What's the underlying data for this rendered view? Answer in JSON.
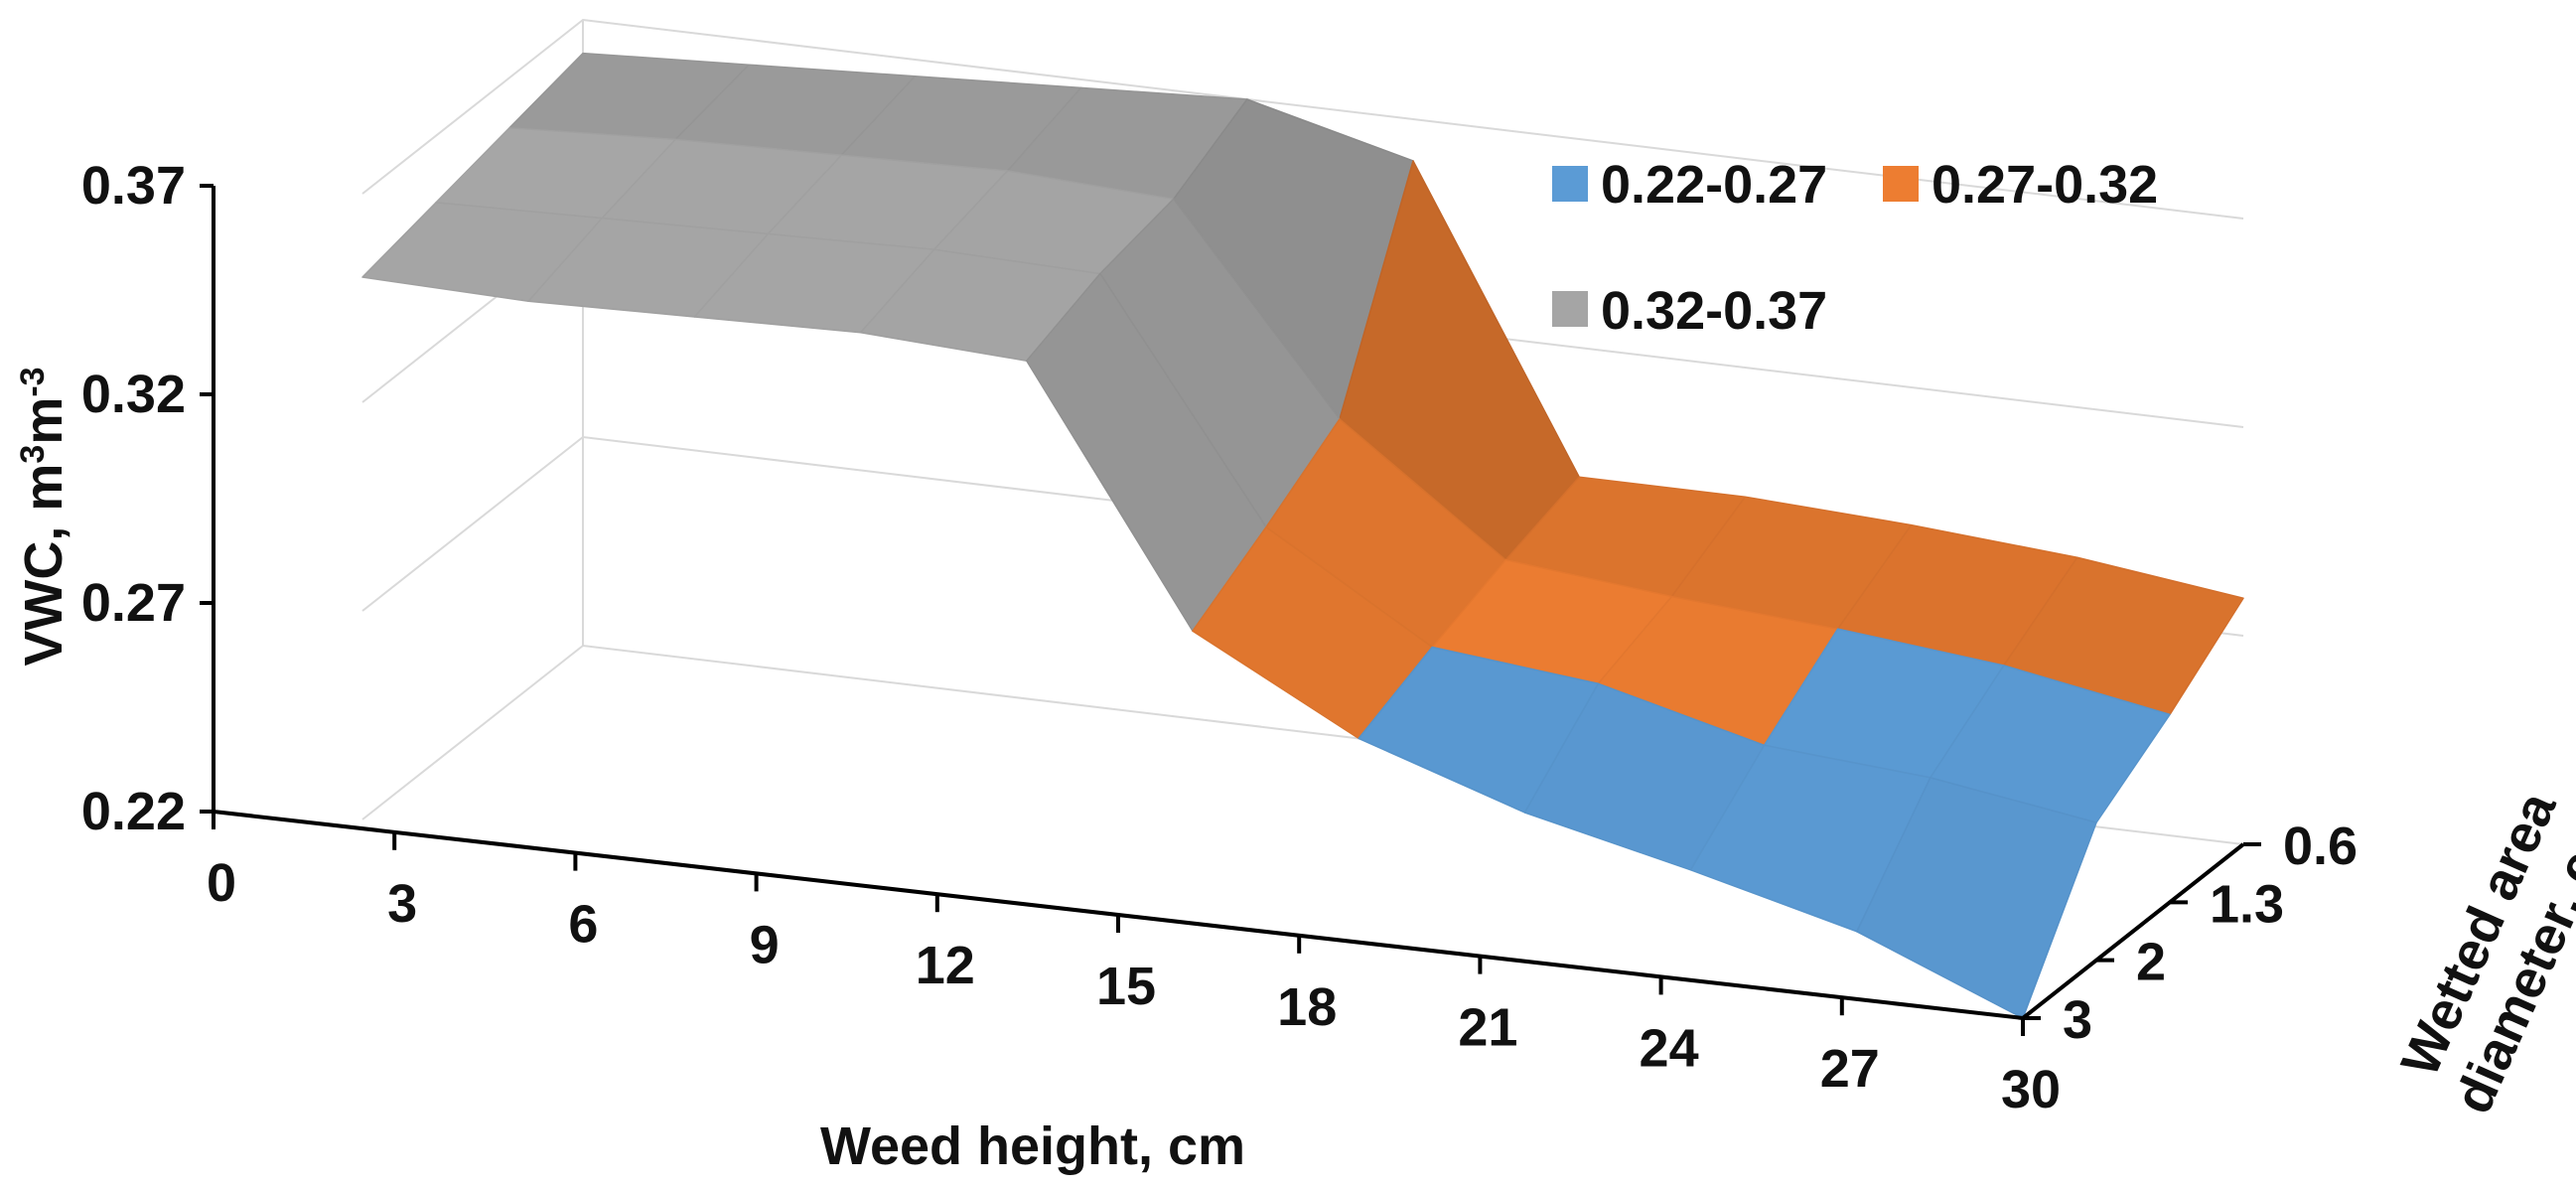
{
  "chart_data": {
    "type": "surface",
    "xlabel": "Weed height, cm",
    "ylabel": "VWC, m",
    "ylabel_sup1": "3",
    "ylabel_mid": "m",
    "ylabel_sup2": "-3",
    "zlabel_line1": "Wetted area",
    "zlabel_line2": "diameter, cm",
    "x_ticks": [
      "0",
      "3",
      "6",
      "9",
      "12",
      "15",
      "18",
      "21",
      "24",
      "27",
      "30"
    ],
    "y_ticks": [
      "0.22",
      "0.27",
      "0.32",
      "0.37"
    ],
    "depth_ticks": [
      "0.6",
      "1.3",
      "2",
      "3"
    ],
    "ylim": [
      0.22,
      0.37
    ],
    "legend_position": "top-right",
    "bands": [
      {
        "name": "0.22-0.27",
        "range": [
          0.22,
          0.27
        ],
        "color": "#5b9bd5"
      },
      {
        "name": "0.27-0.32",
        "range": [
          0.27,
          0.32
        ],
        "color": "#ed7d31"
      },
      {
        "name": "0.32-0.37",
        "range": [
          0.32,
          0.37
        ],
        "color": "#a5a5a5"
      }
    ],
    "x": [
      0,
      3,
      6,
      9,
      12,
      15,
      18,
      21,
      24,
      27,
      30
    ],
    "depth": [
      "0.6",
      "1.3",
      "2",
      "3"
    ],
    "values": [
      [
        0.362,
        0.364,
        0.366,
        0.368,
        0.37,
        0.36,
        0.289,
        0.289,
        0.287,
        0.284,
        0.279
      ],
      [
        0.358,
        0.36,
        0.361,
        0.362,
        0.36,
        0.312,
        0.283,
        0.279,
        0.276,
        0.272,
        0.265
      ],
      [
        0.354,
        0.355,
        0.356,
        0.357,
        0.356,
        0.3,
        0.276,
        0.272,
        0.262,
        0.259,
        0.253
      ],
      [
        0.35,
        0.349,
        0.35,
        0.351,
        0.349,
        0.289,
        0.268,
        0.255,
        0.246,
        0.236,
        0.22
      ]
    ]
  }
}
